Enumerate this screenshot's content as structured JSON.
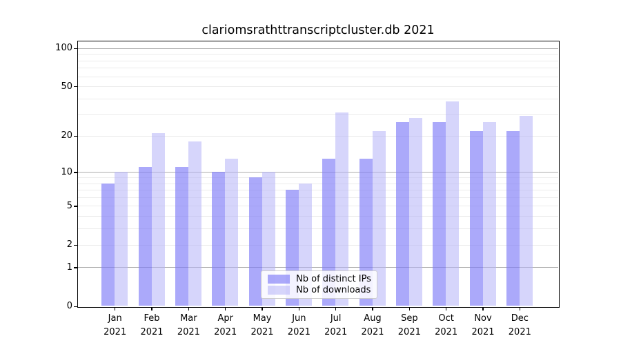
{
  "chart_data": {
    "type": "bar",
    "title": "clariomsrathttranscriptcluster.db 2021",
    "categories": [
      "Jan",
      "Feb",
      "Mar",
      "Apr",
      "May",
      "Jun",
      "Jul",
      "Aug",
      "Sep",
      "Oct",
      "Nov",
      "Dec"
    ],
    "year_label": "2021",
    "series": [
      {
        "name": "Nb of distinct IPs",
        "color": "#7f7cf8",
        "alpha": 0.66,
        "values": [
          8,
          11,
          11,
          10,
          9,
          7,
          13,
          13,
          26,
          26,
          22,
          22
        ]
      },
      {
        "name": "Nb of downloads",
        "color": "#b4b2f7",
        "alpha": 0.55,
        "values": [
          10,
          21,
          18,
          13,
          10,
          8,
          31,
          22,
          28,
          38,
          26,
          29
        ]
      }
    ],
    "yticks": [
      0,
      1,
      2,
      5,
      10,
      20,
      50,
      100
    ],
    "yscale": "log1p",
    "ylim": [
      0,
      115
    ],
    "grid": true,
    "legend_position": "bottom-center"
  }
}
